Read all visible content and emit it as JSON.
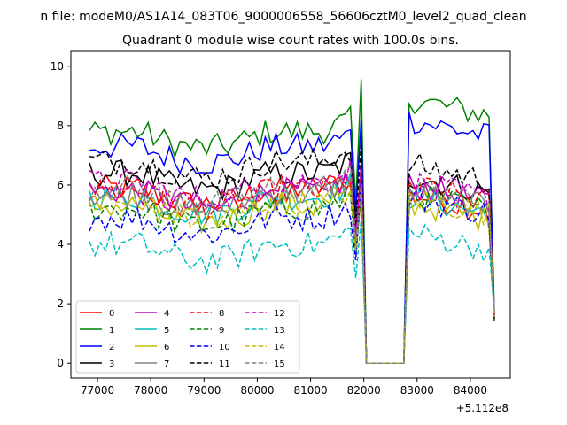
{
  "figure_title": "n file: modeM0/AS1A14_083T06_9000006558_56606cztM0_level2_quad_clean",
  "chart_data": {
    "type": "line",
    "title": "Quadrant 0 module wise count rates with 100.0s bins.",
    "xlabel": "",
    "ylabel": "",
    "x_offset_label": "+5.112e8",
    "xlim": [
      76500,
      84750
    ],
    "ylim": [
      -0.5,
      10.5
    ],
    "x_ticks": [
      77000,
      78000,
      79000,
      80000,
      81000,
      82000,
      83000,
      84000
    ],
    "x_tick_labels": [
      "77000",
      "78000",
      "79000",
      "80000",
      "81000",
      "82000",
      "83000",
      "84000"
    ],
    "y_ticks": [
      0,
      2,
      4,
      6,
      8,
      10
    ],
    "y_tick_labels": [
      "0",
      "2",
      "4",
      "6",
      "8",
      "10"
    ],
    "grid": false,
    "legend_position": "lower-left",
    "legend_columns": 4,
    "x_start": 76850,
    "x_step": 100,
    "gap_start": 81950,
    "gap_end": 82850,
    "x_end": 84450,
    "series": [
      {
        "name": "0",
        "color": "#ff0000",
        "dash": false,
        "level": 5.9,
        "after": 5.7
      },
      {
        "name": "1",
        "color": "#008000",
        "dash": false,
        "level": 7.8,
        "after": 8.9
      },
      {
        "name": "2",
        "color": "#0000ff",
        "dash": false,
        "level": 7.3,
        "after": 8.2
      },
      {
        "name": "3",
        "color": "#000000",
        "dash": false,
        "level": 6.4,
        "after": 6.3
      },
      {
        "name": "4",
        "color": "#bf00bf",
        "dash": false,
        "level": 5.8,
        "after": 6.0
      },
      {
        "name": "5",
        "color": "#00bfbf",
        "dash": false,
        "level": 5.6,
        "after": 5.6
      },
      {
        "name": "6",
        "color": "#bfbf00",
        "dash": false,
        "level": 5.3,
        "after": 5.4
      },
      {
        "name": "7",
        "color": "#808080",
        "dash": false,
        "level": 5.7,
        "after": 5.8
      },
      {
        "name": "8",
        "color": "#ff0000",
        "dash": true,
        "level": 5.8,
        "after": 6.0
      },
      {
        "name": "9",
        "color": "#008000",
        "dash": true,
        "level": 5.2,
        "after": 5.7
      },
      {
        "name": "10",
        "color": "#0000ff",
        "dash": true,
        "level": 4.9,
        "after": 5.6
      },
      {
        "name": "11",
        "color": "#000000",
        "dash": true,
        "level": 6.8,
        "after": 6.7
      },
      {
        "name": "12",
        "color": "#bf00bf",
        "dash": true,
        "level": 6.1,
        "after": 6.1
      },
      {
        "name": "13",
        "color": "#00bfbf",
        "dash": true,
        "level": 4.0,
        "after": 4.4
      },
      {
        "name": "14",
        "color": "#bfbf00",
        "dash": true,
        "level": 5.4,
        "after": 5.6
      },
      {
        "name": "15",
        "color": "#808080",
        "dash": true,
        "level": 5.9,
        "after": 5.9
      }
    ]
  }
}
